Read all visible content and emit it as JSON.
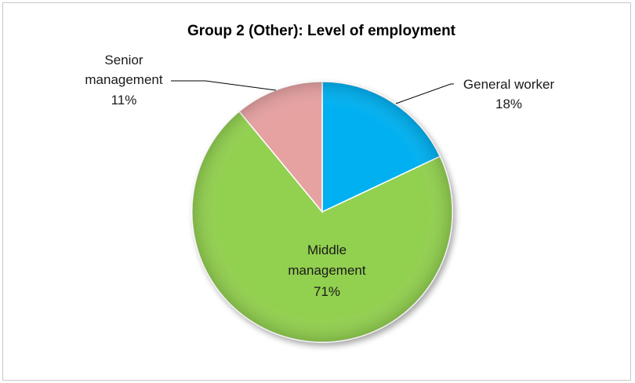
{
  "chart_data": {
    "type": "pie",
    "title": "Group 2 (Other): Level of employment",
    "legend": "none",
    "slices": [
      {
        "name": "General worker",
        "value": 18,
        "label": "18%",
        "color": "#00b0f0"
      },
      {
        "name": "Middle management",
        "value": 71,
        "label": "71%",
        "color": "#92d050"
      },
      {
        "name": "Senior management",
        "value": 11,
        "label": "11%",
        "color": "#e6a1a1"
      }
    ]
  }
}
